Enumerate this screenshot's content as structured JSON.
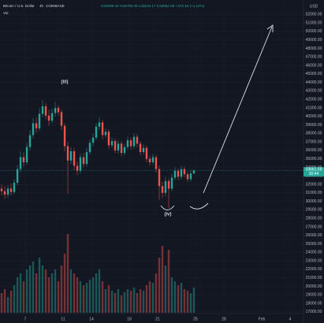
{
  "chart_data": {
    "type": "candlestick",
    "title": "Bitcoin / U.S. Dollar",
    "interval": "4h",
    "exchange": "COINBASE",
    "legend_text": "O33288.44 H33700.00 L33210.17 C33661.59 +373.15 (+1.12%)",
    "volume_label": "Vol",
    "currency": "USD",
    "countdown": "30:44",
    "annotations": [
      "(iii)",
      "(iv)"
    ],
    "up_color": "#26a69a",
    "down_color": "#ef5350",
    "grid": true,
    "x": [
      4.5,
      4.83,
      5.17,
      5.5,
      5.83,
      6.17,
      6.5,
      6.83,
      7.17,
      7.5,
      7.83,
      8.17,
      8.5,
      8.83,
      9.17,
      9.5,
      9.83,
      10.17,
      10.5,
      10.83,
      11.17,
      11.5,
      11.83,
      12.17,
      12.5,
      12.83,
      13.17,
      13.5,
      13.83,
      14.17,
      14.5,
      14.83,
      15.17,
      15.5,
      15.83,
      16.17,
      16.5,
      16.83,
      17.17,
      17.5,
      17.83,
      18.17,
      18.5,
      18.83,
      19.17,
      19.5,
      19.83,
      20.17,
      20.5,
      20.83,
      21.17,
      21.5,
      21.83,
      22.17,
      22.5,
      22.83,
      23.17,
      23.5,
      23.83,
      24.17,
      24.5,
      24.83
    ],
    "open": [
      31500,
      31200,
      30800,
      31500,
      31100,
      32200,
      33800,
      35200,
      34600,
      36400,
      37800,
      39200,
      38600,
      40300,
      41200,
      40100,
      39500,
      40400,
      41000,
      40500,
      38900,
      36500,
      34800,
      35900,
      34200,
      33600,
      35200,
      34400,
      35800,
      36900,
      37500,
      38800,
      39300,
      37800,
      38200,
      36600,
      37100,
      36000,
      36800,
      35700,
      36400,
      37200,
      36500,
      37600,
      36800,
      35800,
      36300,
      35000,
      34600,
      35200,
      33800,
      31800,
      31000,
      32400,
      31500,
      32800,
      33600,
      32900,
      33800,
      33200,
      32600,
      33288.44
    ],
    "high": [
      32000,
      31800,
      31900,
      32100,
      32600,
      34300,
      35900,
      35800,
      36900,
      38400,
      39800,
      39900,
      40900,
      41900,
      41600,
      40800,
      40900,
      41700,
      41300,
      40800,
      39200,
      37000,
      36400,
      36300,
      34700,
      35600,
      35700,
      36300,
      37300,
      38000,
      39200,
      39900,
      39600,
      38600,
      38500,
      37500,
      37400,
      37200,
      37100,
      36800,
      37600,
      37500,
      38000,
      37900,
      37100,
      36700,
      36600,
      35400,
      35600,
      35500,
      34200,
      32300,
      32900,
      32700,
      33200,
      34000,
      33900,
      34200,
      34100,
      33500,
      33700,
      33700
    ],
    "low": [
      30700,
      30300,
      30400,
      30700,
      30800,
      31900,
      33400,
      34100,
      34300,
      36000,
      37400,
      38100,
      38300,
      39900,
      39700,
      38900,
      39200,
      40000,
      40100,
      38400,
      35900,
      30900,
      34400,
      33700,
      33100,
      33300,
      34000,
      34100,
      35500,
      36500,
      37200,
      38400,
      37300,
      37500,
      36200,
      36300,
      35700,
      35600,
      35300,
      35400,
      36100,
      36100,
      36200,
      36400,
      35400,
      35500,
      34600,
      34200,
      34300,
      33400,
      30200,
      30400,
      30600,
      29100,
      31200,
      32500,
      32500,
      32600,
      32800,
      32300,
      32300,
      33210.17
    ],
    "close": [
      31200,
      30800,
      31500,
      31100,
      32200,
      33800,
      35200,
      34600,
      36400,
      37800,
      39200,
      38600,
      40300,
      41200,
      40100,
      39500,
      40400,
      41000,
      40500,
      38900,
      36500,
      34800,
      35900,
      34200,
      33600,
      35200,
      34400,
      35800,
      36900,
      37500,
      38800,
      39300,
      37800,
      38200,
      36600,
      37100,
      36000,
      36800,
      35700,
      36400,
      37200,
      36500,
      37600,
      36800,
      35800,
      36300,
      35000,
      34600,
      35200,
      33800,
      31800,
      31000,
      32400,
      31500,
      32800,
      33600,
      32900,
      33800,
      33200,
      32600,
      33288.44,
      33661.59
    ],
    "volume": [
      25,
      30,
      20,
      28,
      35,
      45,
      50,
      40,
      55,
      60,
      65,
      50,
      70,
      60,
      55,
      45,
      50,
      55,
      40,
      60,
      75,
      100,
      55,
      50,
      45,
      40,
      35,
      38,
      42,
      45,
      50,
      55,
      40,
      30,
      35,
      28,
      25,
      30,
      22,
      26,
      30,
      28,
      32,
      25,
      30,
      28,
      35,
      40,
      38,
      50,
      70,
      85,
      60,
      80,
      45,
      40,
      35,
      38,
      30,
      28,
      25,
      32
    ],
    "xlim": [
      4.33,
      36.42
    ],
    "ylim": [
      16800,
      53700
    ],
    "vlim": [
      0,
      110
    ],
    "xticks": [
      7,
      11,
      14,
      18,
      21,
      25,
      28,
      {
        "value": 32,
        "label": "Feb"
      },
      {
        "value": 35,
        "label": "4"
      }
    ],
    "yticks": [
      {
        "value": 17000,
        "label": "17000.00"
      },
      {
        "value": 18000,
        "label": "18000.00"
      },
      {
        "value": 19000,
        "label": "19000.00"
      },
      {
        "value": 20000,
        "label": "20000.00"
      },
      {
        "value": 21000,
        "label": "21000.00"
      },
      {
        "value": 22000,
        "label": "22000.00"
      },
      {
        "value": 23000,
        "label": "23000.00"
      },
      {
        "value": 24000,
        "label": "24000.00"
      },
      {
        "value": 25000,
        "label": "25000.00"
      },
      {
        "value": 26000,
        "label": "26000.00"
      },
      {
        "value": 27000,
        "label": "27000.00"
      },
      {
        "value": 28000,
        "label": "28000.00"
      },
      {
        "value": 29000,
        "label": "29000.00"
      },
      {
        "value": 30000,
        "label": "30000.00"
      },
      {
        "value": 31000,
        "label": "31000.00"
      },
      {
        "value": 32000,
        "label": "32000.00"
      },
      {
        "value": 33000,
        "label": "33000.00"
      },
      {
        "value": 34000,
        "label": "34000.00"
      },
      {
        "value": 35000,
        "label": "35000.00"
      },
      {
        "value": 36000,
        "label": "36000.00"
      },
      {
        "value": 37000,
        "label": "37000.00"
      },
      {
        "value": 38000,
        "label": "38000.00"
      },
      {
        "value": 39000,
        "label": "39000.00"
      },
      {
        "value": 40000,
        "label": "40000.00"
      },
      {
        "value": 41000,
        "label": "41000.00"
      },
      {
        "value": 42000,
        "label": "42000.00"
      },
      {
        "value": 43000,
        "label": "43000.00"
      },
      {
        "value": 44000,
        "label": "44000.00"
      },
      {
        "value": 45000,
        "label": "45000.00"
      },
      {
        "value": 46000,
        "label": "46000.00"
      },
      {
        "value": 47000,
        "label": "47000.00"
      },
      {
        "value": 48000,
        "label": "48000.00"
      },
      {
        "value": 49000,
        "label": "49000.00"
      },
      {
        "value": 50000,
        "label": "50000.00"
      },
      {
        "value": 51000,
        "label": "51000.00"
      },
      {
        "value": 52000,
        "label": "52000.00"
      }
    ]
  }
}
